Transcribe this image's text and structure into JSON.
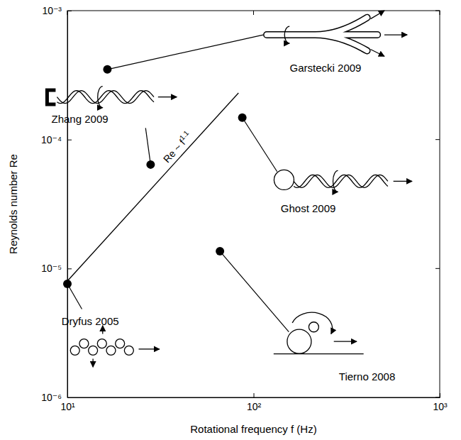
{
  "chart_data": {
    "type": "scatter",
    "x_label": "Rotational frequency f (Hz)",
    "y_label": "Reynolds number Re",
    "log": true,
    "xlim": [
      10,
      1000
    ],
    "ylim": [
      1e-06,
      0.001
    ],
    "xticks": [
      {
        "value": 10,
        "label": "10¹"
      },
      {
        "value": 100,
        "label": "10²"
      },
      {
        "value": 1000,
        "label": "10³"
      }
    ],
    "yticks": [
      {
        "value": 1e-06,
        "label": "10⁻⁶"
      },
      {
        "value": 1e-05,
        "label": "10⁻⁵"
      },
      {
        "value": 0.0001,
        "label": "10⁻⁴"
      },
      {
        "value": 0.001,
        "label": "10⁻³"
      }
    ],
    "series": [
      {
        "type": "scatter",
        "marker": "circle",
        "color": "#000000",
        "x": [
          10,
          28,
          16.4,
          87,
          66
        ],
        "values": [
          7.6e-06,
          6.4e-05,
          0.00035,
          0.000148,
          1.36e-05
        ],
        "labels": [
          "Dryfus 2005",
          "Zhang 2009",
          "Garstecki 2009",
          "Ghost 2009",
          "Tierno 2008"
        ]
      },
      {
        "type": "line",
        "line_style": "solid",
        "color": "#000000",
        "x": [
          10,
          83
        ],
        "values": [
          8e-06,
          0.00023
        ]
      }
    ],
    "annotation": {
      "text": "Re ~ f",
      "superscript": "1.1"
    }
  }
}
